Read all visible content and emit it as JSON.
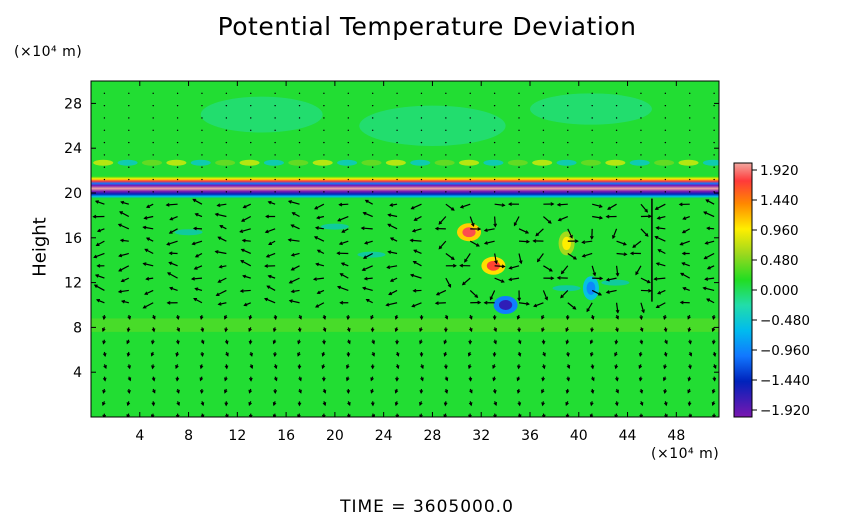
{
  "chart_data": {
    "type": "heatmap",
    "title": "Potential Temperature Deviation",
    "ylabel": "Height",
    "xlabel": "",
    "x_unit": "(×10⁴ m)",
    "y_unit": "(×10⁴ m)",
    "xlim": [
      0,
      51.5
    ],
    "ylim": [
      0,
      30
    ],
    "x_ticks": [
      4,
      8,
      12,
      16,
      20,
      24,
      28,
      32,
      36,
      40,
      44,
      48
    ],
    "y_ticks": [
      4,
      8,
      12,
      16,
      20,
      24,
      28
    ],
    "colorbar": {
      "ticks": [
        1.92,
        1.44,
        0.96,
        0.48,
        0.0,
        -0.48,
        -0.96,
        -1.44,
        -1.92
      ],
      "labels": [
        "1.920",
        "1.440",
        "0.960",
        "0.480",
        "0.000",
        "−0.480",
        "−0.960",
        "−1.440",
        "−1.920"
      ],
      "range": [
        -1.92,
        1.92
      ]
    },
    "overlay": "wind vectors (arrows)",
    "features": [
      {
        "kind": "band",
        "y_range": [
          19.5,
          21.5
        ],
        "value_range": [
          -1.92,
          1.92
        ]
      },
      {
        "kind": "patch",
        "x": 31,
        "y": 16.5,
        "value": 1.7
      },
      {
        "kind": "patch",
        "x": 33,
        "y": 13.5,
        "value": 1.6
      },
      {
        "kind": "patch",
        "x": 34,
        "y": 10,
        "value": -1.6
      },
      {
        "kind": "patch",
        "x": 39,
        "y": 15.5,
        "value": 0.9
      },
      {
        "kind": "patch",
        "x": 41,
        "y": 11.5,
        "value": -0.9
      }
    ]
  },
  "caption": {
    "time_text": "TIME  =  3605000.0"
  }
}
